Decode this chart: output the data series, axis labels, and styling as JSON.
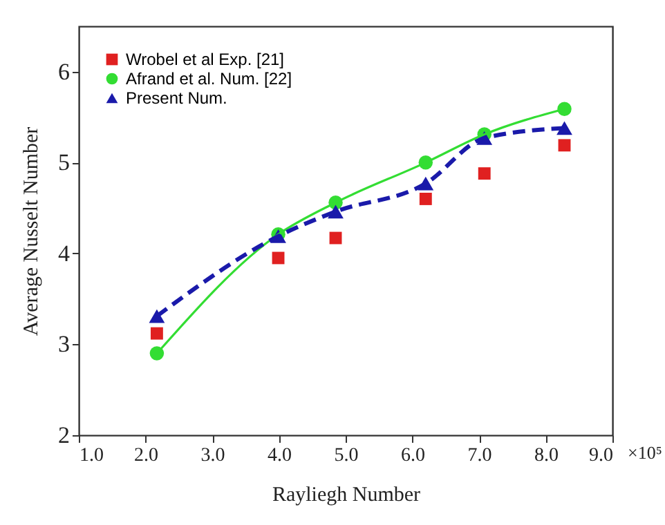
{
  "chart_data": {
    "type": "line",
    "xlabel": "Rayliegh Number",
    "ylabel": "Average Nusselt Number",
    "xlim": [
      1,
      9
    ],
    "xticks": [
      {
        "value": 1,
        "label": "1.0"
      },
      {
        "value": 2,
        "label": "2.0"
      },
      {
        "value": 3,
        "label": "3.0"
      },
      {
        "value": 4,
        "label": "4.0"
      },
      {
        "value": 5,
        "label": "5.0"
      },
      {
        "value": 6,
        "label": "6.0"
      },
      {
        "value": 7,
        "label": "7.0"
      },
      {
        "value": 8,
        "label": "8.0"
      },
      {
        "value": 9,
        "label": "9.0"
      }
    ],
    "annotations": [
      "×10⁵"
    ],
    "ylim": [
      2,
      6.5
    ],
    "yticks": [
      2,
      3,
      4,
      5,
      6
    ],
    "grid": false,
    "legend": "top left",
    "x": [
      2.17,
      3.99,
      4.85,
      6.2,
      7.08,
      8.28
    ],
    "series": [
      {
        "name": "Wrobel et al Exp. [21]",
        "type": "scatter",
        "marker": "square",
        "color": "#e02020",
        "values": [
          3.12,
          3.95,
          4.17,
          4.6,
          4.88,
          5.19
        ]
      },
      {
        "name": "Afrand et al. Num. [22]",
        "marker": "circle",
        "line_style": "solid",
        "color": "#33dd33",
        "values": [
          2.9,
          4.21,
          4.56,
          5.0,
          5.31,
          5.59
        ]
      },
      {
        "name": "Present Num.",
        "marker": "triangle",
        "line_style": "dashed",
        "color": "#1a1aaa",
        "values": [
          3.31,
          4.19,
          4.46,
          4.77,
          5.27,
          5.38
        ]
      }
    ]
  }
}
